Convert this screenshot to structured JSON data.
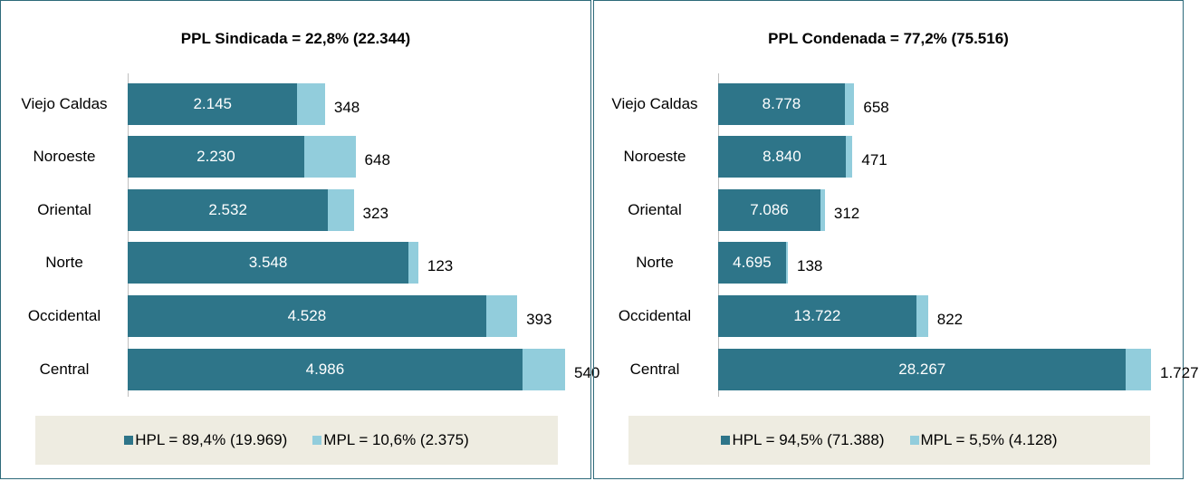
{
  "chart_data": [
    {
      "type": "bar",
      "stacked": true,
      "orientation": "horizontal",
      "title": "PPL Sindicada = 22,8% (22.344)",
      "categories": [
        "Viejo Caldas",
        "Noroeste",
        "Oriental",
        "Norte",
        "Occidental",
        "Central"
      ],
      "series": [
        {
          "name": "HPL = 89,4% (19.969)",
          "color": "#2e7589",
          "values": [
            2145,
            2230,
            2532,
            3548,
            4528,
            4986
          ],
          "value_labels": [
            "2.145",
            "2.230",
            "2.532",
            "3.548",
            "4.528",
            "4.986"
          ]
        },
        {
          "name": "MPL = 10,6% (2.375)",
          "color": "#92cddc",
          "values": [
            348,
            648,
            323,
            123,
            393,
            540
          ],
          "value_labels": [
            "348",
            "648",
            "323",
            "123",
            "393",
            "540"
          ]
        }
      ]
    },
    {
      "type": "bar",
      "stacked": true,
      "orientation": "horizontal",
      "title": "PPL Condenada = 77,2% (75.516)",
      "categories": [
        "Viejo Caldas",
        "Noroeste",
        "Oriental",
        "Norte",
        "Occidental",
        "Central"
      ],
      "series": [
        {
          "name": "HPL = 94,5% (71.388)",
          "color": "#2e7589",
          "values": [
            8778,
            8840,
            7086,
            4695,
            13722,
            28267
          ],
          "value_labels": [
            "8.778",
            "8.840",
            "7.086",
            "4.695",
            "13.722",
            "28.267"
          ]
        },
        {
          "name": "MPL = 5,5% (4.128)",
          "color": "#92cddc",
          "values": [
            658,
            471,
            312,
            138,
            822,
            1727
          ],
          "value_labels": [
            "658",
            "471",
            "312",
            "138",
            "822",
            "1.727"
          ]
        }
      ]
    }
  ]
}
